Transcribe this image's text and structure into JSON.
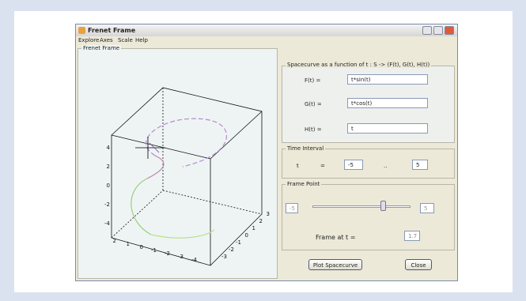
{
  "window": {
    "title": "Frenet Frame",
    "menu": [
      "Explore",
      "Axes",
      "Scale",
      "Help"
    ]
  },
  "plot": {
    "title": "Frenet Frame",
    "z_tick_labels": [
      "4",
      "2",
      "0",
      "-2",
      "-4"
    ],
    "x_tick_labels": [
      "2",
      "1",
      "0",
      "-1",
      "-2",
      "-3",
      "-4"
    ],
    "y_tick_labels": [
      "3",
      "2",
      "1",
      "0",
      "-1",
      "-2",
      "-3"
    ]
  },
  "spacecurve": {
    "title": "Spacecurve as a function of t : S -> (F(t), G(t), H(t))",
    "rows": [
      {
        "label": "F(t) =",
        "value": "t*sin(t)"
      },
      {
        "label": "G(t) =",
        "value": "t*cos(t)"
      },
      {
        "label": "H(t) =",
        "value": "t"
      }
    ]
  },
  "time_interval": {
    "title": "Time Interval",
    "variable": "t",
    "equals": "=",
    "start": "-5",
    "dots": "..",
    "end": "5"
  },
  "frame_point": {
    "title": "Frame Point",
    "min": "-5",
    "max": "5",
    "label": "Frame at t =",
    "value": "1.7"
  },
  "buttons": {
    "plot": "Plot Spacecurve",
    "close": "Close"
  }
}
